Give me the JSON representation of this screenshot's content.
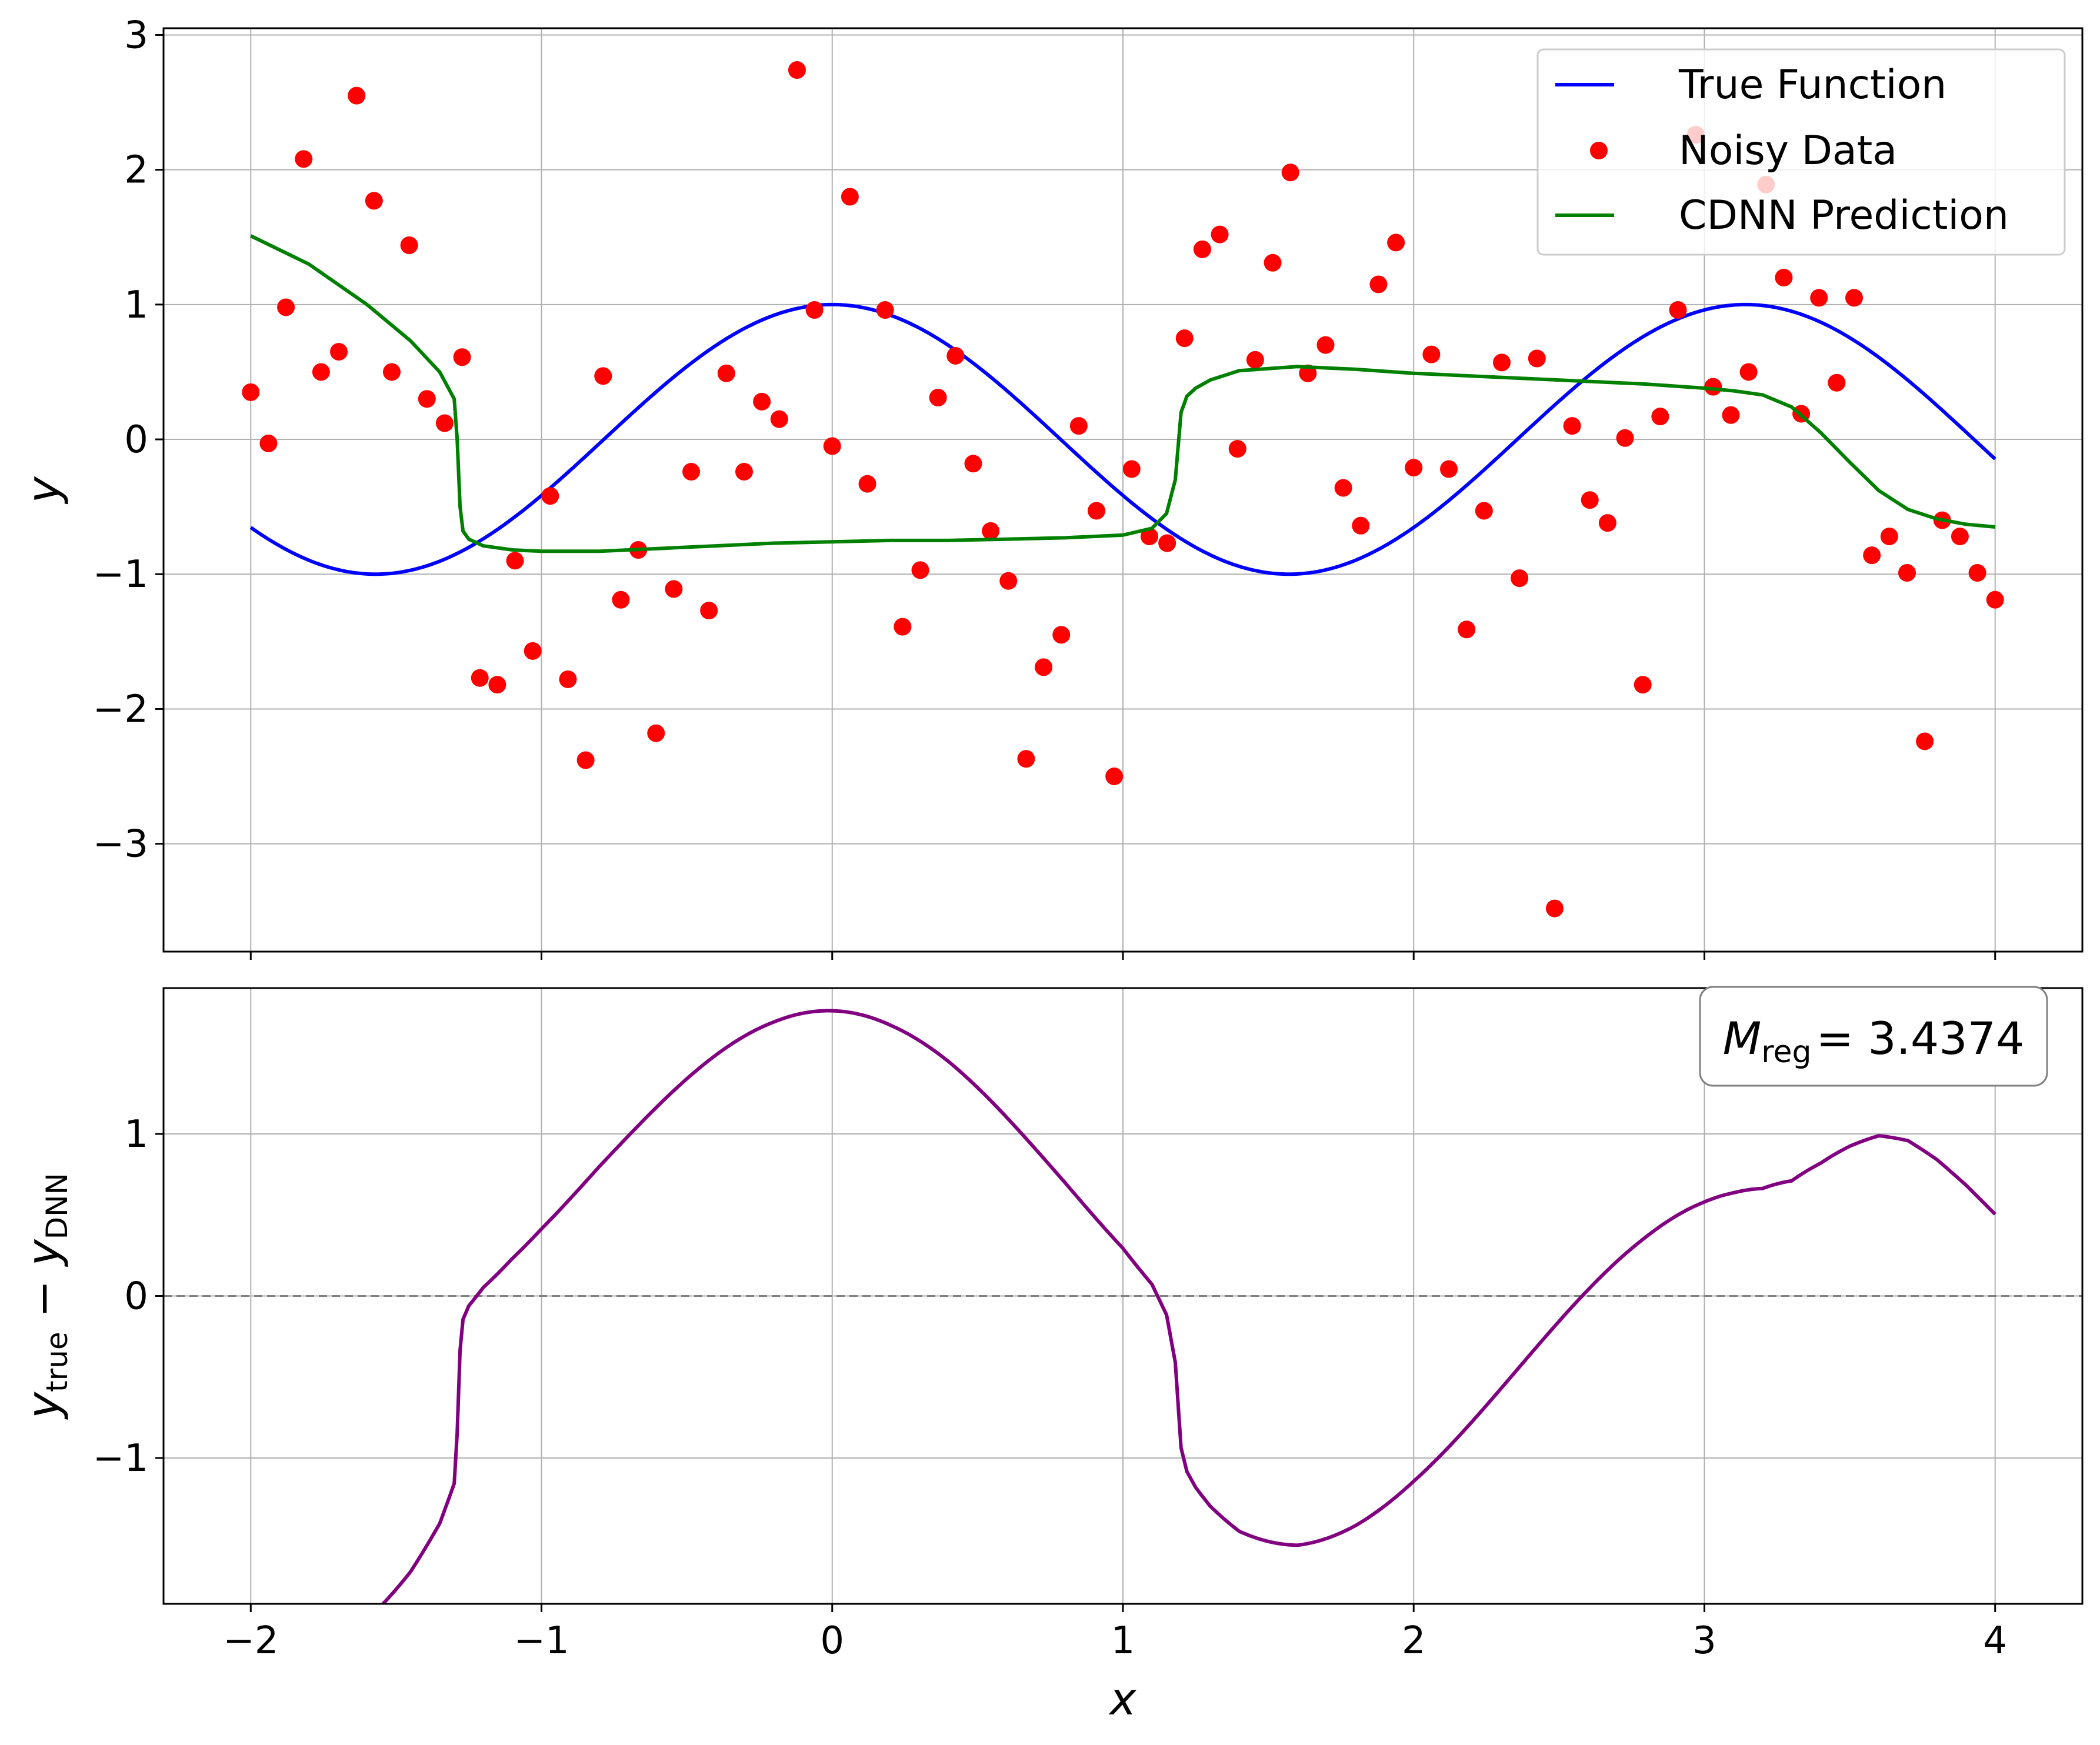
{
  "chart_data": [
    {
      "type": "line",
      "panel": "top",
      "title": "",
      "xlabel": "",
      "ylabel": "y",
      "xlim": [
        -2.3,
        4.3
      ],
      "ylim": [
        -3.8,
        3.05
      ],
      "xticks": [
        -2,
        -1,
        0,
        1,
        2,
        3,
        4
      ],
      "yticks": [
        -3,
        -2,
        -1,
        0,
        1,
        2,
        3
      ],
      "ytick_labels": [
        "−3",
        "−2",
        "−1",
        "0",
        "1",
        "2",
        "3"
      ],
      "grid": true,
      "legend": {
        "position": "top-right",
        "entries": [
          "True Function",
          "Noisy Data",
          "CDNN Prediction"
        ]
      },
      "series": [
        {
          "name": "True Function",
          "kind": "line",
          "color": "#0000ff",
          "formula": "sin(2x + pi/2)",
          "x_range": [
            -2,
            4
          ]
        },
        {
          "name": "Noisy Data",
          "kind": "scatter",
          "color": "#ff0000",
          "x": [
            -2.0,
            -1.939,
            -1.879,
            -1.818,
            -1.758,
            -1.697,
            -1.636,
            -1.576,
            -1.515,
            -1.455,
            -1.394,
            -1.333,
            -1.273,
            -1.212,
            -1.152,
            -1.091,
            -1.03,
            -0.97,
            -0.909,
            -0.848,
            -0.788,
            -0.727,
            -0.667,
            -0.606,
            -0.545,
            -0.485,
            -0.424,
            -0.364,
            -0.303,
            -0.242,
            -0.182,
            -0.121,
            -0.061,
            0.0,
            0.061,
            0.121,
            0.182,
            0.242,
            0.303,
            0.364,
            0.424,
            0.485,
            0.545,
            0.606,
            0.667,
            0.727,
            0.788,
            0.848,
            0.909,
            0.97,
            1.03,
            1.091,
            1.152,
            1.212,
            1.273,
            1.333,
            1.394,
            1.455,
            1.515,
            1.576,
            1.636,
            1.697,
            1.758,
            1.818,
            1.879,
            1.939,
            2.0,
            2.061,
            2.121,
            2.182,
            2.242,
            2.303,
            2.364,
            2.424,
            2.485,
            2.545,
            2.606,
            2.667,
            2.727,
            2.788,
            2.848,
            2.909,
            2.97,
            3.03,
            3.091,
            3.152,
            3.212,
            3.273,
            3.333,
            3.394,
            3.455,
            3.515,
            3.576,
            3.636,
            3.697,
            3.758,
            3.818,
            3.879,
            3.939,
            4.0
          ],
          "y": [
            0.35,
            -0.03,
            0.98,
            2.08,
            0.5,
            0.65,
            2.55,
            1.77,
            0.5,
            1.44,
            0.3,
            0.12,
            0.61,
            -1.77,
            -1.82,
            -0.9,
            -1.57,
            -0.42,
            -1.78,
            -2.38,
            0.47,
            -1.19,
            -0.82,
            -2.18,
            -1.11,
            -0.24,
            -1.27,
            0.49,
            -0.24,
            0.28,
            0.15,
            2.74,
            0.96,
            -0.05,
            1.8,
            -0.33,
            0.96,
            -1.39,
            -0.97,
            0.31,
            0.62,
            -0.18,
            -0.68,
            -1.05,
            -2.37,
            -1.69,
            -1.45,
            0.1,
            -0.53,
            -2.5,
            -0.22,
            -0.72,
            -0.77,
            0.75,
            1.41,
            1.52,
            -0.07,
            0.59,
            1.31,
            1.98,
            0.49,
            0.7,
            -0.36,
            -0.64,
            1.15,
            1.46,
            -0.21,
            0.63,
            -0.22,
            -1.41,
            -0.53,
            0.57,
            -1.03,
            0.6,
            -3.48,
            0.1,
            -0.45,
            -0.62,
            0.01,
            -1.82,
            0.17,
            0.96,
            2.26,
            0.39,
            0.18,
            0.5,
            1.89,
            1.2,
            0.19,
            1.05,
            0.42,
            1.05,
            -0.86,
            -0.72,
            -0.99,
            -2.24,
            -0.6,
            -0.72,
            -0.99,
            -1.19
          ]
        },
        {
          "name": "CDNN Prediction",
          "kind": "line",
          "color": "#008000",
          "x": [
            -2.0,
            -1.8,
            -1.6,
            -1.45,
            -1.35,
            -1.3,
            -1.29,
            -1.28,
            -1.27,
            -1.25,
            -1.2,
            -1.1,
            -1.0,
            -0.8,
            -0.6,
            -0.4,
            -0.2,
            0.0,
            0.2,
            0.4,
            0.6,
            0.8,
            1.0,
            1.1,
            1.15,
            1.18,
            1.2,
            1.22,
            1.25,
            1.3,
            1.4,
            1.6,
            1.8,
            2.0,
            2.4,
            2.8,
            3.0,
            3.1,
            3.2,
            3.3,
            3.4,
            3.5,
            3.6,
            3.7,
            3.8,
            3.9,
            4.0
          ],
          "y": [
            1.51,
            1.3,
            1.0,
            0.73,
            0.5,
            0.3,
            0.0,
            -0.5,
            -0.68,
            -0.74,
            -0.79,
            -0.82,
            -0.83,
            -0.83,
            -0.81,
            -0.79,
            -0.77,
            -0.76,
            -0.75,
            -0.75,
            -0.74,
            -0.73,
            -0.71,
            -0.66,
            -0.55,
            -0.3,
            0.2,
            0.32,
            0.38,
            0.44,
            0.51,
            0.54,
            0.52,
            0.49,
            0.45,
            0.41,
            0.38,
            0.36,
            0.33,
            0.24,
            0.05,
            -0.17,
            -0.38,
            -0.52,
            -0.59,
            -0.63,
            -0.65
          ]
        }
      ]
    },
    {
      "type": "line",
      "panel": "bottom",
      "title": "",
      "xlabel": "x",
      "ylabel": "y_true − y_DNN",
      "xlim": [
        -2.3,
        4.3
      ],
      "ylim": [
        -1.9,
        1.9
      ],
      "xticks": [
        -2,
        -1,
        0,
        1,
        2,
        3,
        4
      ],
      "xtick_labels": [
        "−2",
        "−1",
        "0",
        "1",
        "2",
        "3",
        "4"
      ],
      "yticks": [
        -1,
        0,
        1
      ],
      "ytick_labels": [
        "−1",
        "0",
        "1"
      ],
      "grid": true,
      "reference_line": {
        "y": 0,
        "style": "dashed",
        "color": "#808080"
      },
      "annotation": {
        "text": "M_reg = 3.4374",
        "symbol": "M",
        "subscript": "reg",
        "value": "= 3.4374",
        "position": "top-right"
      },
      "series": [
        {
          "name": "",
          "kind": "line",
          "color": "#800080",
          "formula": "sin(2x + pi/2) - CDNN Prediction",
          "x_range": [
            -2,
            4
          ]
        }
      ]
    }
  ]
}
